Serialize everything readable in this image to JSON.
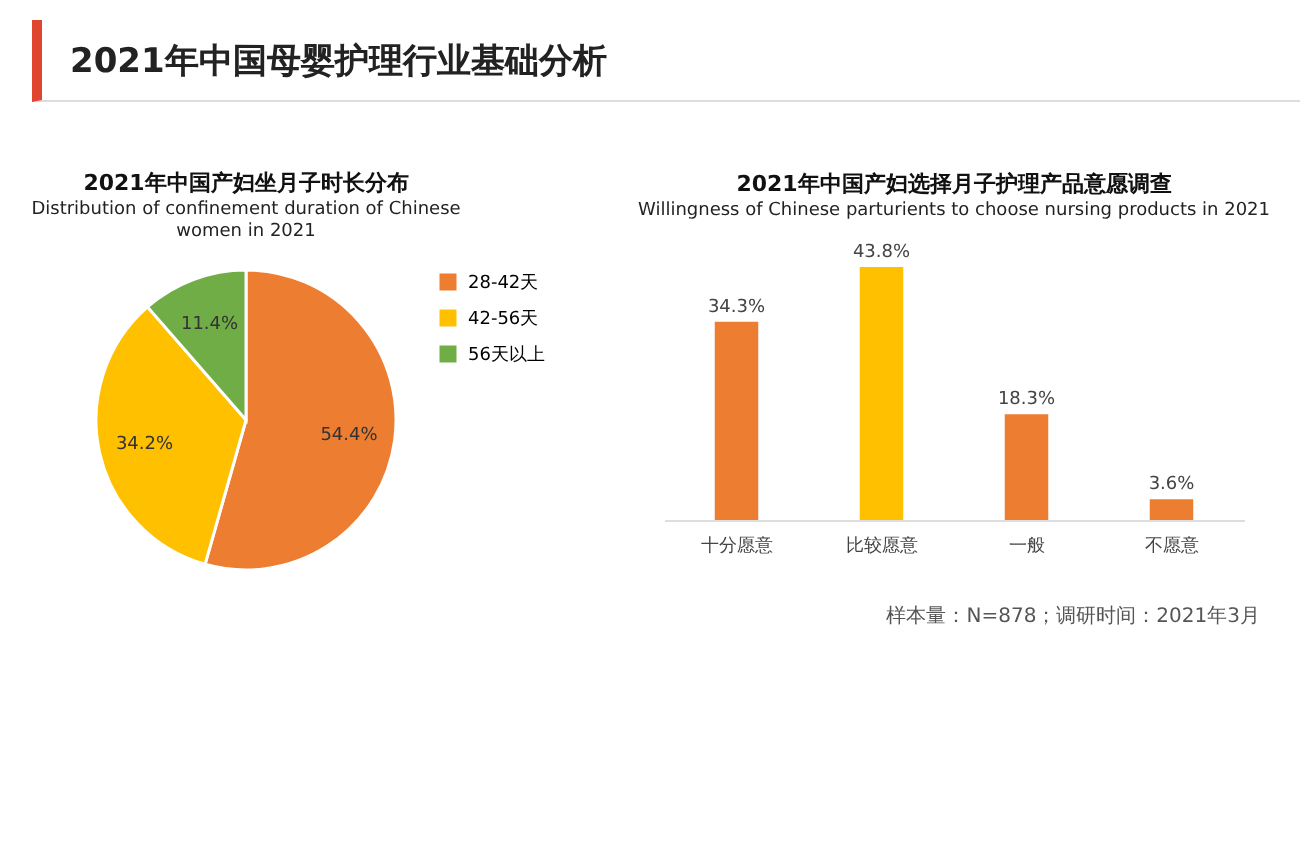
{
  "chart_data": [
    {
      "type": "pie",
      "title": "2021年中国产妇坐月子时长分布",
      "subtitle": "Distribution of confinement duration of Chinese women in 2021",
      "annotations": [
        "2021年中国母婴护理行业基础分析"
      ],
      "categories": [
        "28-42天",
        "42-56天",
        "56天以上"
      ],
      "values": [
        54.4,
        34.2,
        11.4
      ],
      "colors": [
        "#ed7d31",
        "#ffc000",
        "#70ad47"
      ],
      "value_labels": [
        "54.4%",
        "34.2%",
        "11.4%"
      ],
      "legend": "right"
    },
    {
      "type": "bar",
      "title": "2021年中国产妇选择月子护理产品意愿调查",
      "subtitle": "Willingness of Chinese parturients to choose nursing products in 2021",
      "annotations": [
        "样本量：N=878；调研时间：2021年3月"
      ],
      "categories": [
        "十分愿意",
        "比较愿意",
        "一般",
        "不愿意"
      ],
      "values": [
        34.3,
        43.8,
        18.3,
        3.6
      ],
      "colors": [
        "#ed7d31",
        "#ffc000",
        "#ed7d31",
        "#ed7d31"
      ],
      "value_labels": [
        "34.3%",
        "43.8%",
        "18.3%",
        "3.6%"
      ],
      "tick_labels": "x"
    }
  ]
}
